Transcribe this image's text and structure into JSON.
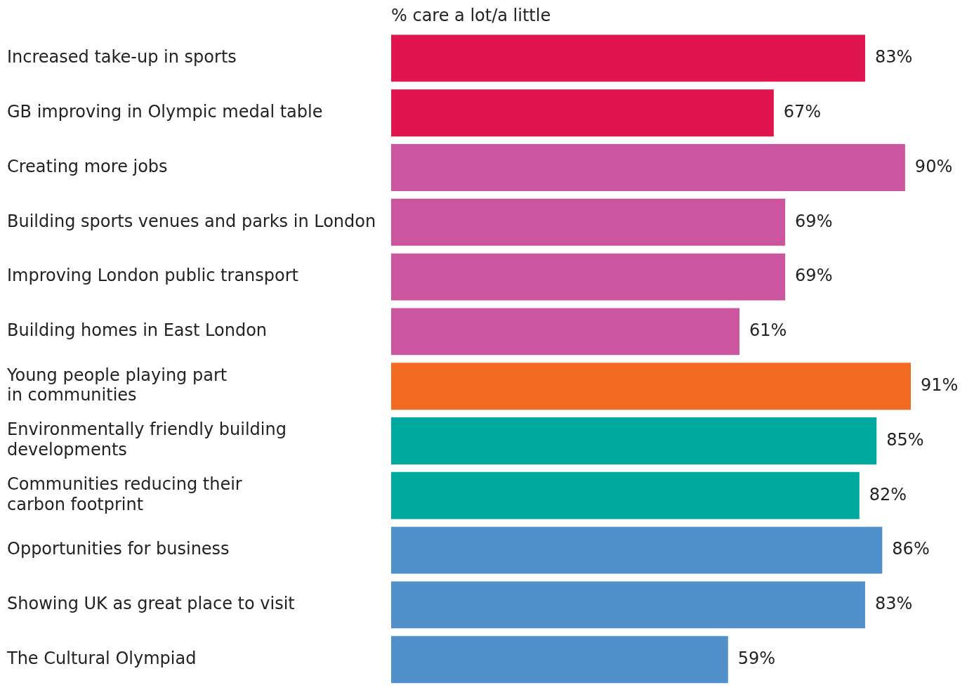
{
  "chart_data": {
    "type": "bar",
    "orientation": "horizontal",
    "title": "% care a lot/a little",
    "categories": [
      "Increased take-up in sports",
      "GB improving in Olympic medal table",
      "Creating more jobs",
      "Building sports venues and parks in London",
      "Improving London public transport",
      "Building homes in East London",
      "Young people playing part\nin communities",
      "Environmentally friendly building\ndevelopments",
      "Communities reducing their\ncarbon footprint",
      "Opportunities for business",
      "Showing UK as great place to visit",
      "The Cultural Olympiad"
    ],
    "values": [
      83,
      67,
      90,
      69,
      69,
      61,
      91,
      85,
      82,
      86,
      83,
      59
    ],
    "value_labels": [
      "83%",
      "67%",
      "90%",
      "69%",
      "69%",
      "61%",
      "91%",
      "85%",
      "82%",
      "86%",
      "83%",
      "59%"
    ],
    "colors": [
      "#e0144f",
      "#e0144f",
      "#cc559f",
      "#cc559f",
      "#cc559f",
      "#cc559f",
      "#f26b22",
      "#00a99d",
      "#00a99d",
      "#5290cc",
      "#5290cc",
      "#5290cc"
    ],
    "legend": false
  }
}
